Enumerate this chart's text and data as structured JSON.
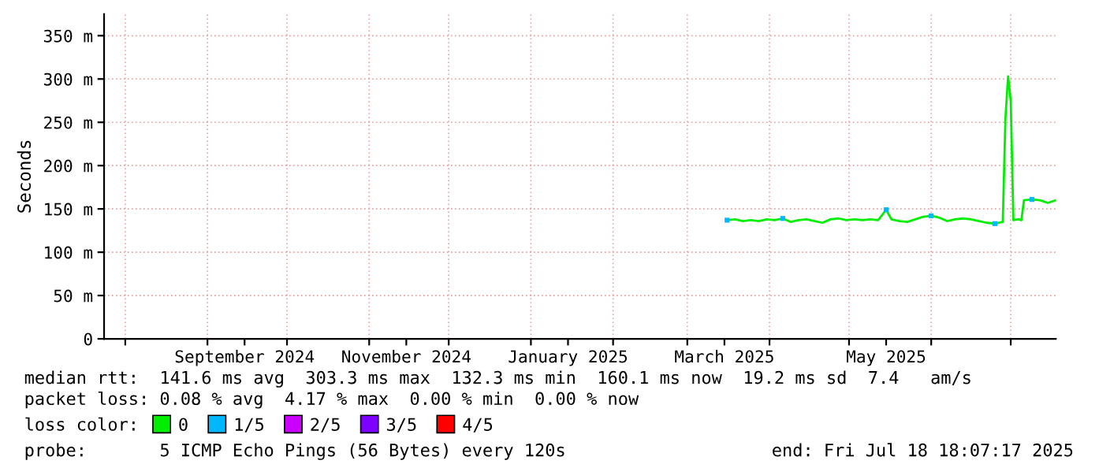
{
  "chart_data": {
    "type": "line",
    "ylabel": "Seconds",
    "legend_title": "loss color:",
    "legend": "bottom",
    "grid": true,
    "marker": "none",
    "line_style": "solid",
    "xlim": [
      "2024-07-24",
      "2025-07-18"
    ],
    "xticks": [
      {
        "value": "2024-08-01",
        "label": null
      },
      {
        "value": "2024-09-01",
        "label": null
      },
      {
        "value": "2024-09-15",
        "label": "September 2024"
      },
      {
        "value": "2024-10-01",
        "label": null
      },
      {
        "value": "2024-11-01",
        "label": null
      },
      {
        "value": "2024-11-15",
        "label": "November 2024"
      },
      {
        "value": "2024-12-01",
        "label": null
      },
      {
        "value": "2025-01-01",
        "label": null
      },
      {
        "value": "2025-01-15",
        "label": "January 2025"
      },
      {
        "value": "2025-02-01",
        "label": null
      },
      {
        "value": "2025-03-01",
        "label": null
      },
      {
        "value": "2025-03-15",
        "label": "March 2025"
      },
      {
        "value": "2025-04-01",
        "label": null
      },
      {
        "value": "2025-05-01",
        "label": null
      },
      {
        "value": "2025-05-15",
        "label": "May 2025"
      },
      {
        "value": "2025-06-01",
        "label": null
      },
      {
        "value": "2025-07-01",
        "label": null
      }
    ],
    "ylim": [
      0,
      375
    ],
    "yticks": [
      0,
      {
        "value": 50,
        "label": "50 m"
      },
      {
        "value": 100,
        "label": "100 m"
      },
      {
        "value": 150,
        "label": "150 m"
      },
      {
        "value": 200,
        "label": "200 m"
      },
      {
        "value": 250,
        "label": "250 m"
      },
      {
        "value": 300,
        "label": "300 m"
      },
      {
        "value": 350,
        "label": "350 m"
      }
    ],
    "x": [
      "2025-03-16",
      "2025-03-19",
      "2025-03-22",
      "2025-03-25",
      "2025-03-28",
      "2025-03-31",
      "2025-04-03",
      "2025-04-06",
      "2025-04-09",
      "2025-04-12",
      "2025-04-15",
      "2025-04-18",
      "2025-04-21",
      "2025-04-24",
      "2025-04-27",
      "2025-04-30",
      "2025-05-03",
      "2025-05-06",
      "2025-05-09",
      "2025-05-12",
      "2025-05-15",
      "2025-05-17",
      "2025-05-20",
      "2025-05-23",
      "2025-05-26",
      "2025-05-29",
      "2025-06-01",
      "2025-06-04",
      "2025-06-07",
      "2025-06-10",
      "2025-06-13",
      "2025-06-16",
      "2025-06-19",
      "2025-06-22",
      "2025-06-25",
      "2025-06-28",
      "2025-06-29",
      "2025-06-30",
      "2025-07-01",
      "2025-07-02",
      "2025-07-04",
      "2025-07-05",
      "2025-07-06",
      "2025-07-09",
      "2025-07-12",
      "2025-07-15",
      "2025-07-18"
    ],
    "series": [
      {
        "name": "0",
        "color": "#00ee00",
        "values": [
          137,
          138,
          136,
          137,
          136,
          138,
          137,
          139,
          135,
          137,
          138,
          136,
          134,
          138,
          139,
          137,
          138,
          137,
          138,
          137,
          149,
          138,
          136,
          135,
          138,
          141,
          142,
          140,
          136,
          138,
          139,
          138,
          136,
          134,
          133,
          135,
          255,
          303,
          275,
          137,
          138,
          137,
          160,
          161,
          160,
          157,
          160
        ]
      },
      {
        "name": "1/5",
        "type": "scatter",
        "marker": "square",
        "color": "#00b8ff",
        "values": [
          137,
          null,
          null,
          null,
          null,
          null,
          null,
          139,
          null,
          null,
          null,
          null,
          null,
          null,
          null,
          null,
          null,
          null,
          null,
          null,
          149,
          null,
          null,
          null,
          null,
          null,
          142,
          null,
          null,
          null,
          null,
          null,
          null,
          null,
          133,
          null,
          null,
          null,
          null,
          null,
          null,
          null,
          null,
          161,
          null,
          null,
          null
        ]
      },
      {
        "name": "2/5",
        "type": "scatter",
        "marker": "square",
        "color": "#cc00ff",
        "values": [
          null,
          null,
          null,
          null,
          null,
          null,
          null,
          null,
          null,
          null,
          null,
          null,
          null,
          null,
          null,
          null,
          null,
          null,
          null,
          null,
          null,
          null,
          null,
          null,
          null,
          null,
          null,
          null,
          null,
          null,
          null,
          null,
          null,
          null,
          null,
          null,
          null,
          null,
          null,
          null,
          null,
          null,
          null,
          null,
          null,
          null,
          null
        ]
      },
      {
        "name": "3/5",
        "type": "scatter",
        "marker": "square",
        "color": "#7e00ff",
        "values": [
          null,
          null,
          null,
          null,
          null,
          null,
          null,
          null,
          null,
          null,
          null,
          null,
          null,
          null,
          null,
          null,
          null,
          null,
          null,
          null,
          null,
          null,
          null,
          null,
          null,
          null,
          null,
          null,
          null,
          null,
          null,
          null,
          null,
          null,
          null,
          null,
          null,
          null,
          null,
          null,
          null,
          null,
          null,
          null,
          null,
          null,
          null
        ]
      },
      {
        "name": "4/5",
        "type": "scatter",
        "marker": "square",
        "color": "#ff0000",
        "values": [
          null,
          null,
          null,
          null,
          null,
          null,
          null,
          null,
          null,
          null,
          null,
          null,
          null,
          null,
          null,
          null,
          null,
          null,
          null,
          null,
          null,
          null,
          null,
          null,
          null,
          null,
          null,
          null,
          null,
          null,
          null,
          null,
          null,
          null,
          null,
          null,
          null,
          null,
          null,
          null,
          null,
          null,
          null,
          null,
          null,
          null,
          null
        ]
      }
    ],
    "annotations": [
      "median rtt:  141.6 ms avg  303.3 ms max  132.3 ms min  160.1 ms now  19.2 ms sd  7.4   am/s",
      "packet loss: 0.08 % avg  4.17 % max  0.00 % min  0.00 % now",
      "probe:       5 ICMP Echo Pings (56 Bytes) every 120s",
      "end: Fri Jul 18 18:07:17 2025"
    ]
  }
}
